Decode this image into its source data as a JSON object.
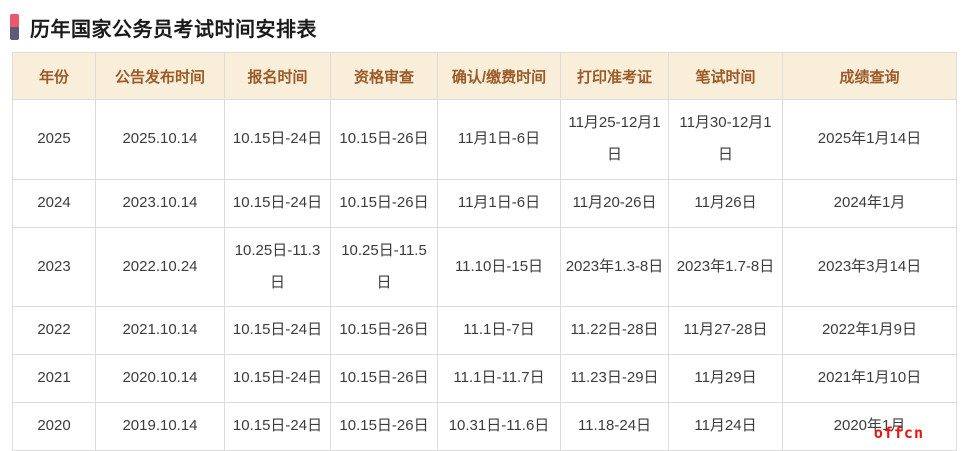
{
  "page": {
    "title": "历年国家公务员考试时间安排表",
    "watermark": "offcn"
  },
  "table": {
    "columns": [
      "年份",
      "公告发布时间",
      "报名时间",
      "资格审查",
      "确认/缴费时间",
      "打印准考证",
      "笔试时间",
      "成绩查询"
    ],
    "rows": [
      [
        "2025",
        "2025.10.14",
        "10.15日-24日",
        "10.15日-26日",
        "11月1日-6日",
        "11月25-12月1日",
        "11月30-12月1日",
        "2025年1月14日"
      ],
      [
        "2024",
        "2023.10.14",
        "10.15日-24日",
        "10.15日-26日",
        "11月1日-6日",
        "11月20-26日",
        "11月26日",
        "2024年1月"
      ],
      [
        "2023",
        "2022.10.24",
        "10.25日-11.3日",
        "10.25日-11.5日",
        "11.10日-15日",
        "2023年1.3-8日",
        "2023年1.7-8日",
        "2023年3月14日"
      ],
      [
        "2022",
        "2021.10.14",
        "10.15日-24日",
        "10.15日-26日",
        "11.1日-7日",
        "11.22日-28日",
        "11月27-28日",
        "2022年1月9日"
      ],
      [
        "2021",
        "2020.10.14",
        "10.15日-24日",
        "10.15日-26日",
        "11.1日-11.7日",
        "11.23日-29日",
        "11月29日",
        "2021年1月10日"
      ],
      [
        "2020",
        "2019.10.14",
        "10.15日-24日",
        "10.15日-26日",
        "10.31日-11.6日",
        "11.18-24日",
        "11月24日",
        "2020年1月"
      ]
    ]
  },
  "colors": {
    "header_bg": "#f9eeda",
    "header_text": "#9a5b28",
    "body_text": "#3c3c3c",
    "border": "#dcdcdc",
    "watermark": "#ee1310",
    "bullet_top": "#e8596d",
    "bullet_bottom": "#5b5b79",
    "title_text": "#1a1a1a"
  }
}
